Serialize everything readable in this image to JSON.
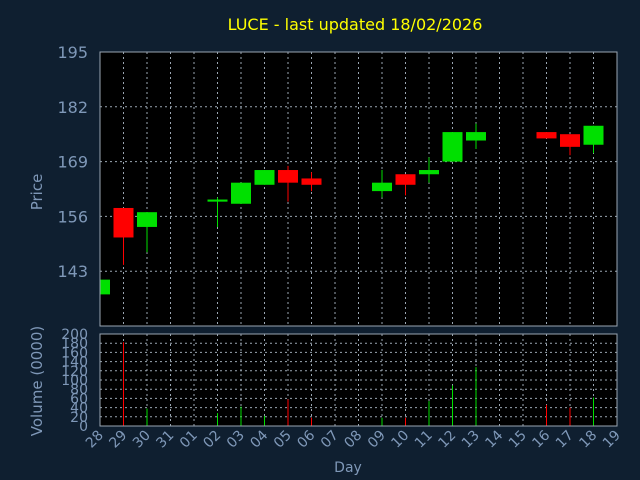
{
  "title": "LUCE - last updated 18/02/2026",
  "colors": {
    "background": "#0f1f30",
    "plot_background": "#000000",
    "title": "#ffff00",
    "axis_text": "#7f98b8",
    "up": "#00e000",
    "down": "#ff0000",
    "grid": "#9aa6b2"
  },
  "chart_data": [
    {
      "type": "candlestick",
      "ylabel": "Price",
      "ylim": [
        130,
        195
      ],
      "yticks": [
        143,
        156,
        169,
        182,
        195
      ],
      "x_ticks": [
        "28",
        "29",
        "30",
        "31",
        "01",
        "02",
        "03",
        "04",
        "05",
        "06",
        "07",
        "08",
        "09",
        "10",
        "11",
        "12",
        "13",
        "14",
        "15",
        "16",
        "17",
        "18",
        "19"
      ],
      "candles": [
        {
          "day": "28",
          "open": 137.5,
          "close": 141.0,
          "high": 141.0,
          "low": 137.5
        },
        {
          "day": "29",
          "open": 158.0,
          "close": 151.0,
          "high": 158.0,
          "low": 144.5
        },
        {
          "day": "30",
          "open": 153.5,
          "close": 157.0,
          "high": 157.0,
          "low": 147.5
        },
        {
          "day": "02",
          "open": 159.5,
          "close": 160.0,
          "high": 160.5,
          "low": 153.5
        },
        {
          "day": "03",
          "open": 159.0,
          "close": 164.0,
          "high": 164.0,
          "low": 159.0
        },
        {
          "day": "04",
          "open": 163.5,
          "close": 167.0,
          "high": 167.0,
          "low": 163.5
        },
        {
          "day": "05",
          "open": 167.0,
          "close": 164.0,
          "high": 168.0,
          "low": 159.5
        },
        {
          "day": "06",
          "open": 165.0,
          "close": 163.5,
          "high": 166.5,
          "low": 162.0
        },
        {
          "day": "09",
          "open": 162.0,
          "close": 164.0,
          "high": 167.0,
          "low": 160.5
        },
        {
          "day": "10",
          "open": 166.0,
          "close": 163.5,
          "high": 166.0,
          "low": 161.0
        },
        {
          "day": "11",
          "open": 166.0,
          "close": 167.0,
          "high": 170.0,
          "low": 164.0
        },
        {
          "day": "12",
          "open": 169.0,
          "close": 176.0,
          "high": 176.0,
          "low": 169.0
        },
        {
          "day": "13",
          "open": 174.0,
          "close": 176.0,
          "high": 178.0,
          "low": 172.0
        },
        {
          "day": "16",
          "open": 176.0,
          "close": 174.5,
          "high": 176.0,
          "low": 174.5
        },
        {
          "day": "17",
          "open": 175.5,
          "close": 172.5,
          "high": 175.5,
          "low": 170.5
        },
        {
          "day": "18",
          "open": 173.0,
          "close": 177.5,
          "high": 177.5,
          "low": 171.0
        }
      ]
    },
    {
      "type": "bar",
      "xlabel": "Day",
      "ylabel": "Volume (0000)",
      "ylim": [
        0,
        200
      ],
      "yticks": [
        0,
        20,
        40,
        60,
        80,
        100,
        120,
        140,
        160,
        180,
        200
      ],
      "x_ticks": [
        "28",
        "29",
        "30",
        "31",
        "01",
        "02",
        "03",
        "04",
        "05",
        "06",
        "07",
        "08",
        "09",
        "10",
        "11",
        "12",
        "13",
        "14",
        "15",
        "16",
        "17",
        "18",
        "19"
      ],
      "bars": [
        {
          "day": "28",
          "value": 6,
          "dir": "up"
        },
        {
          "day": "29",
          "value": 182,
          "dir": "down"
        },
        {
          "day": "30",
          "value": 38,
          "dir": "up"
        },
        {
          "day": "02",
          "value": 28,
          "dir": "up"
        },
        {
          "day": "03",
          "value": 42,
          "dir": "up"
        },
        {
          "day": "04",
          "value": 22,
          "dir": "up"
        },
        {
          "day": "05",
          "value": 58,
          "dir": "down"
        },
        {
          "day": "06",
          "value": 18,
          "dir": "down"
        },
        {
          "day": "09",
          "value": 18,
          "dir": "up"
        },
        {
          "day": "10",
          "value": 18,
          "dir": "down"
        },
        {
          "day": "11",
          "value": 54,
          "dir": "up"
        },
        {
          "day": "12",
          "value": 88,
          "dir": "up"
        },
        {
          "day": "13",
          "value": 128,
          "dir": "up"
        },
        {
          "day": "16",
          "value": 46,
          "dir": "down"
        },
        {
          "day": "17",
          "value": 40,
          "dir": "down"
        },
        {
          "day": "18",
          "value": 62,
          "dir": "up"
        }
      ]
    }
  ]
}
